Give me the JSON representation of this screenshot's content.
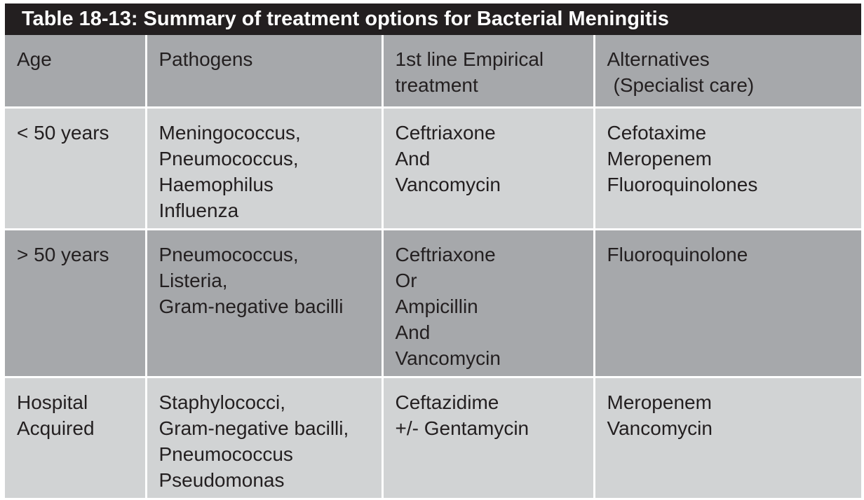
{
  "title": "Table 18-13:  Summary of treatment options for Bacterial Meningitis",
  "headers": {
    "age": "Age",
    "pathogens": "Pathogens",
    "first_line": [
      "1st line Empirical",
      "treatment"
    ],
    "alternatives": [
      "Alternatives",
      "(Specialist care)"
    ]
  },
  "rows": [
    {
      "age": [
        "< 50 years"
      ],
      "pathogens": [
        "Meningococcus,",
        "Pneumococcus,",
        "Haemophilus",
        "Influenza"
      ],
      "first_line": [
        "Ceftriaxone",
        "And",
        "Vancomycin"
      ],
      "alternatives": [
        "Cefotaxime",
        "Meropenem",
        "Fluoroquinolones"
      ]
    },
    {
      "age": [
        "> 50 years"
      ],
      "pathogens": [
        "Pneumococcus,",
        "Listeria,",
        "Gram-negative bacilli"
      ],
      "first_line": [
        "Ceftriaxone",
        "Or",
        "Ampicillin",
        "And",
        "Vancomycin"
      ],
      "alternatives": [
        "Fluoroquinolone"
      ]
    },
    {
      "age": [
        "Hospital",
        "Acquired"
      ],
      "pathogens": [
        "Staphylococci,",
        "Gram-negative bacilli,",
        "Pneumococcus",
        "Pseudomonas"
      ],
      "first_line": [
        "Ceftazidime",
        "+/- Gentamycin"
      ],
      "alternatives": [
        "Meropenem",
        "Vancomycin"
      ]
    }
  ],
  "colors": {
    "title_bg": "#231f20",
    "title_text": "#ffffff",
    "dark_row": "#a6a8ab",
    "light_row": "#d1d3d4",
    "cell_text": "#231f20",
    "grid_line": "#ffffff"
  }
}
